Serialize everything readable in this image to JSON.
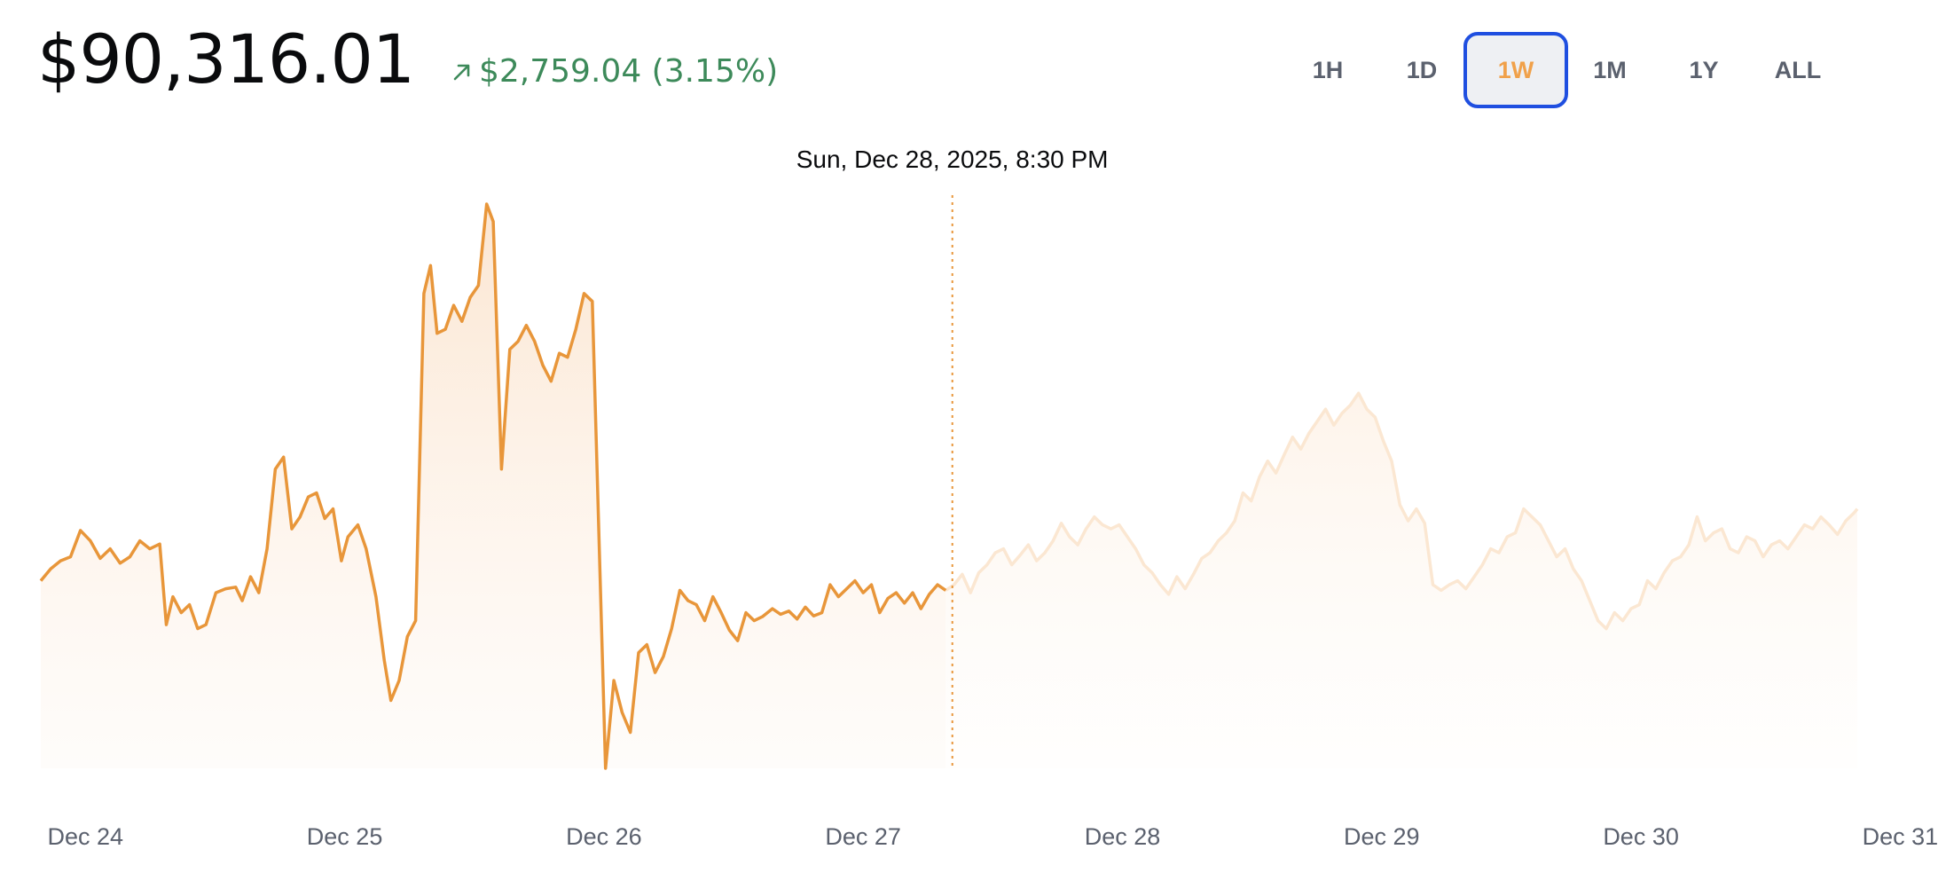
{
  "header": {
    "price": "$90,316.01",
    "change_text": "$2,759.04 (3.15%)",
    "change_direction": "up",
    "change_icon": "arrow-up-right-icon",
    "colors": {
      "positive": "#3d8a5a",
      "text": "#0a0b0d"
    }
  },
  "time_ranges": {
    "options": [
      "1H",
      "1D",
      "1W",
      "1M",
      "1Y",
      "ALL"
    ],
    "selected": "1W"
  },
  "chart_data": {
    "type": "area",
    "tooltip": "Sun, Dec 28, 2025, 8:30 PM",
    "x_tick_labels": [
      "Dec 24",
      "Dec 25",
      "Dec 26",
      "Dec 27",
      "Dec 28",
      "Dec 29",
      "Dec 30",
      "Dec 31"
    ],
    "hover_day": 5.52,
    "colors": {
      "line": "#e8963a",
      "line_faded": "#fbe7d2",
      "fill": "#fdeee0",
      "crosshair": "#e8963a"
    },
    "series": [
      {
        "points": [
          [
            0.0,
            87200
          ],
          [
            0.06,
            87350
          ],
          [
            0.12,
            87450
          ],
          [
            0.18,
            87500
          ],
          [
            0.24,
            87830
          ],
          [
            0.3,
            87700
          ],
          [
            0.36,
            87480
          ],
          [
            0.42,
            87600
          ],
          [
            0.48,
            87420
          ],
          [
            0.54,
            87500
          ],
          [
            0.6,
            87700
          ],
          [
            0.66,
            87600
          ],
          [
            0.72,
            87660
          ],
          [
            0.76,
            86650
          ],
          [
            0.8,
            87000
          ],
          [
            0.85,
            86800
          ],
          [
            0.9,
            86900
          ],
          [
            0.95,
            86600
          ],
          [
            1.0,
            86650
          ],
          [
            1.06,
            87050
          ],
          [
            1.12,
            87100
          ],
          [
            1.18,
            87120
          ],
          [
            1.22,
            86950
          ],
          [
            1.27,
            87250
          ],
          [
            1.32,
            87050
          ],
          [
            1.37,
            87600
          ],
          [
            1.42,
            88600
          ],
          [
            1.47,
            88750
          ],
          [
            1.52,
            87850
          ],
          [
            1.57,
            88000
          ],
          [
            1.62,
            88250
          ],
          [
            1.67,
            88300
          ],
          [
            1.72,
            87980
          ],
          [
            1.77,
            88100
          ],
          [
            1.82,
            87450
          ],
          [
            1.86,
            87750
          ],
          [
            1.92,
            87900
          ],
          [
            1.97,
            87600
          ],
          [
            2.03,
            87000
          ],
          [
            2.08,
            86200
          ],
          [
            2.12,
            85700
          ],
          [
            2.17,
            85950
          ],
          [
            2.22,
            86500
          ],
          [
            2.27,
            86700
          ],
          [
            2.32,
            90800
          ],
          [
            2.36,
            91150
          ],
          [
            2.4,
            90300
          ],
          [
            2.45,
            90350
          ],
          [
            2.5,
            90650
          ],
          [
            2.55,
            90450
          ],
          [
            2.6,
            90750
          ],
          [
            2.65,
            90900
          ],
          [
            2.7,
            91920
          ],
          [
            2.74,
            91700
          ],
          [
            2.79,
            88600
          ],
          [
            2.84,
            90100
          ],
          [
            2.89,
            90200
          ],
          [
            2.94,
            90400
          ],
          [
            2.99,
            90200
          ],
          [
            3.04,
            89900
          ],
          [
            3.09,
            89700
          ],
          [
            3.14,
            90050
          ],
          [
            3.19,
            90000
          ],
          [
            3.24,
            90350
          ],
          [
            3.29,
            90800
          ],
          [
            3.34,
            90700
          ],
          [
            3.42,
            84850
          ],
          [
            3.47,
            85950
          ],
          [
            3.52,
            85550
          ],
          [
            3.57,
            85300
          ],
          [
            3.62,
            86300
          ],
          [
            3.67,
            86400
          ],
          [
            3.72,
            86050
          ],
          [
            3.77,
            86250
          ],
          [
            3.82,
            86600
          ],
          [
            3.87,
            87080
          ],
          [
            3.92,
            86950
          ],
          [
            3.97,
            86900
          ],
          [
            4.02,
            86700
          ],
          [
            4.07,
            87000
          ],
          [
            4.12,
            86800
          ],
          [
            4.17,
            86580
          ],
          [
            4.22,
            86450
          ],
          [
            4.27,
            86800
          ],
          [
            4.32,
            86700
          ],
          [
            4.37,
            86750
          ],
          [
            4.43,
            86850
          ],
          [
            4.48,
            86780
          ],
          [
            4.53,
            86820
          ],
          [
            4.58,
            86720
          ],
          [
            4.63,
            86870
          ],
          [
            4.68,
            86760
          ],
          [
            4.73,
            86800
          ],
          [
            4.78,
            87150
          ],
          [
            4.83,
            87000
          ],
          [
            4.88,
            87100
          ],
          [
            4.93,
            87200
          ],
          [
            4.98,
            87050
          ],
          [
            5.03,
            87150
          ],
          [
            5.08,
            86800
          ],
          [
            5.13,
            86980
          ],
          [
            5.18,
            87050
          ],
          [
            5.23,
            86920
          ],
          [
            5.28,
            87050
          ],
          [
            5.33,
            86850
          ],
          [
            5.38,
            87030
          ],
          [
            5.43,
            87150
          ],
          [
            5.48,
            87080
          ],
          [
            5.53,
            87150
          ],
          [
            5.58,
            87280
          ],
          [
            5.63,
            87050
          ],
          [
            5.68,
            87300
          ],
          [
            5.73,
            87400
          ],
          [
            5.78,
            87550
          ],
          [
            5.83,
            87600
          ],
          [
            5.88,
            87400
          ],
          [
            5.93,
            87520
          ],
          [
            5.98,
            87650
          ],
          [
            6.03,
            87450
          ],
          [
            6.08,
            87550
          ],
          [
            6.13,
            87700
          ],
          [
            6.18,
            87920
          ],
          [
            6.23,
            87750
          ],
          [
            6.28,
            87650
          ],
          [
            6.33,
            87850
          ],
          [
            6.38,
            88000
          ],
          [
            6.43,
            87900
          ],
          [
            6.48,
            87850
          ],
          [
            6.53,
            87900
          ],
          [
            6.58,
            87750
          ],
          [
            6.63,
            87600
          ],
          [
            6.68,
            87400
          ],
          [
            6.73,
            87300
          ],
          [
            6.78,
            87150
          ],
          [
            6.83,
            87030
          ],
          [
            6.88,
            87250
          ],
          [
            6.93,
            87100
          ],
          [
            6.98,
            87280
          ],
          [
            7.03,
            87480
          ],
          [
            7.08,
            87550
          ],
          [
            7.13,
            87700
          ],
          [
            7.18,
            87800
          ],
          [
            7.23,
            87950
          ],
          [
            7.28,
            88300
          ],
          [
            7.33,
            88200
          ],
          [
            7.38,
            88500
          ],
          [
            7.43,
            88700
          ],
          [
            7.48,
            88550
          ],
          [
            7.53,
            88780
          ],
          [
            7.58,
            89000
          ],
          [
            7.63,
            88850
          ],
          [
            7.68,
            89050
          ],
          [
            7.73,
            89200
          ],
          [
            7.78,
            89350
          ],
          [
            7.83,
            89150
          ],
          [
            7.88,
            89300
          ],
          [
            7.93,
            89400
          ],
          [
            7.98,
            89550
          ],
          [
            8.03,
            89350
          ],
          [
            8.08,
            89250
          ],
          [
            8.13,
            88950
          ],
          [
            8.18,
            88700
          ],
          [
            8.23,
            88150
          ],
          [
            8.28,
            87950
          ],
          [
            8.33,
            88100
          ],
          [
            8.38,
            87920
          ],
          [
            8.43,
            87150
          ],
          [
            8.48,
            87080
          ],
          [
            8.53,
            87150
          ],
          [
            8.58,
            87200
          ],
          [
            8.63,
            87100
          ],
          [
            8.68,
            87250
          ],
          [
            8.73,
            87400
          ],
          [
            8.78,
            87600
          ],
          [
            8.83,
            87550
          ],
          [
            8.88,
            87750
          ],
          [
            8.93,
            87800
          ],
          [
            8.98,
            88100
          ],
          [
            9.03,
            88000
          ],
          [
            9.08,
            87900
          ],
          [
            9.13,
            87700
          ],
          [
            9.18,
            87500
          ],
          [
            9.23,
            87600
          ],
          [
            9.28,
            87350
          ],
          [
            9.33,
            87200
          ],
          [
            9.38,
            86950
          ],
          [
            9.43,
            86700
          ],
          [
            9.48,
            86600
          ],
          [
            9.53,
            86800
          ],
          [
            9.58,
            86700
          ],
          [
            9.63,
            86850
          ],
          [
            9.68,
            86900
          ],
          [
            9.73,
            87200
          ],
          [
            9.78,
            87100
          ],
          [
            9.83,
            87300
          ],
          [
            9.88,
            87450
          ],
          [
            9.93,
            87500
          ],
          [
            9.98,
            87650
          ],
          [
            10.03,
            88000
          ],
          [
            10.08,
            87700
          ],
          [
            10.13,
            87800
          ],
          [
            10.18,
            87850
          ],
          [
            10.23,
            87600
          ],
          [
            10.28,
            87550
          ],
          [
            10.33,
            87750
          ],
          [
            10.38,
            87700
          ],
          [
            10.43,
            87500
          ],
          [
            10.48,
            87650
          ],
          [
            10.53,
            87700
          ],
          [
            10.58,
            87600
          ],
          [
            10.63,
            87750
          ],
          [
            10.68,
            87900
          ],
          [
            10.73,
            87850
          ],
          [
            10.78,
            88000
          ],
          [
            10.83,
            87900
          ],
          [
            10.88,
            87780
          ],
          [
            10.93,
            87950
          ],
          [
            10.98,
            88050
          ],
          [
            11.0,
            88100
          ]
        ]
      }
    ]
  }
}
